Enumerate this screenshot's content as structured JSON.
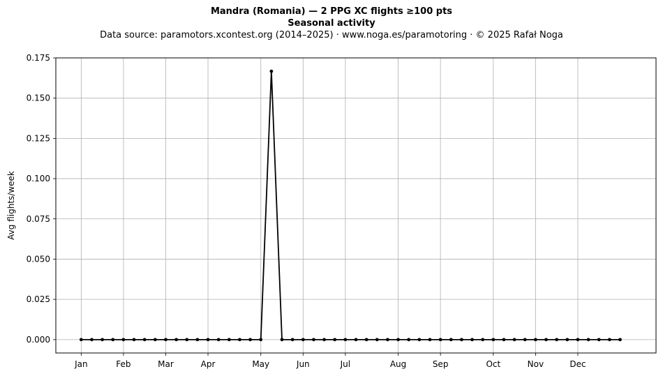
{
  "header": {
    "title": "Mandra (Romania)  —  2 PPG XC flights ≥100 pts",
    "subtitle": "Seasonal activity",
    "source": "Data source: paramotors.xcontest.org (2014–2025)  ·  www.noga.es/paramotoring  ·  © 2025 Rafał Noga"
  },
  "chart_data": {
    "type": "line",
    "title": "Mandra (Romania)  —  2 PPG XC flights ≥100 pts",
    "subtitle": "Seasonal activity",
    "xlabel": "",
    "ylabel": "Avg flights/week",
    "x_unit": "week of year",
    "x": [
      1,
      2,
      3,
      4,
      5,
      6,
      7,
      8,
      9,
      10,
      11,
      12,
      13,
      14,
      15,
      16,
      17,
      18,
      19,
      20,
      21,
      22,
      23,
      24,
      25,
      26,
      27,
      28,
      29,
      30,
      31,
      32,
      33,
      34,
      35,
      36,
      37,
      38,
      39,
      40,
      41,
      42,
      43,
      44,
      45,
      46,
      47,
      48,
      49,
      50,
      51,
      52
    ],
    "series": [
      {
        "name": "",
        "color": "#000000",
        "values": [
          0,
          0,
          0,
          0,
          0,
          0,
          0,
          0,
          0,
          0,
          0,
          0,
          0,
          0,
          0,
          0,
          0,
          0,
          0.1667,
          0,
          0,
          0,
          0,
          0,
          0,
          0,
          0,
          0,
          0,
          0,
          0,
          0,
          0,
          0,
          0,
          0,
          0,
          0,
          0,
          0,
          0,
          0,
          0,
          0,
          0,
          0,
          0,
          0,
          0,
          0,
          0,
          0
        ]
      }
    ],
    "x_ticks": [
      {
        "label": "Jan",
        "week": 1
      },
      {
        "label": "Feb",
        "week": 5
      },
      {
        "label": "Mar",
        "week": 9
      },
      {
        "label": "Apr",
        "week": 13
      },
      {
        "label": "May",
        "week": 18
      },
      {
        "label": "Jun",
        "week": 22
      },
      {
        "label": "Jul",
        "week": 26
      },
      {
        "label": "Aug",
        "week": 31
      },
      {
        "label": "Sep",
        "week": 35
      },
      {
        "label": "Oct",
        "week": 40
      },
      {
        "label": "Nov",
        "week": 44
      },
      {
        "label": "Dec",
        "week": 48
      }
    ],
    "y_ticks": [
      "0.000",
      "0.025",
      "0.050",
      "0.075",
      "0.100",
      "0.125",
      "0.150",
      "0.175"
    ],
    "xlim": [
      -1.4,
      55.4
    ],
    "ylim": [
      -0.0083,
      0.175
    ],
    "grid": true,
    "legend": "none"
  }
}
